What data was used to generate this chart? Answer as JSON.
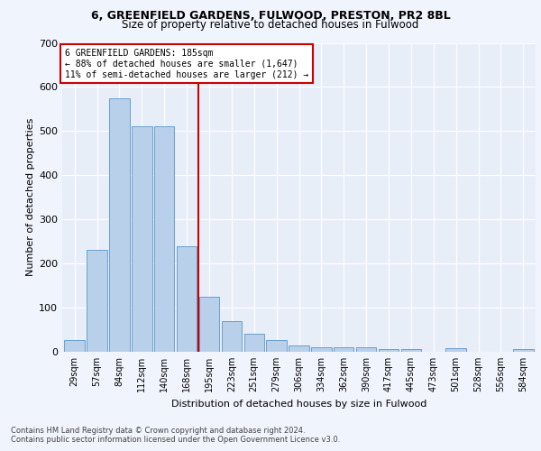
{
  "title1": "6, GREENFIELD GARDENS, FULWOOD, PRESTON, PR2 8BL",
  "title2": "Size of property relative to detached houses in Fulwood",
  "xlabel": "Distribution of detached houses by size in Fulwood",
  "ylabel": "Number of detached properties",
  "categories": [
    "29sqm",
    "57sqm",
    "84sqm",
    "112sqm",
    "140sqm",
    "168sqm",
    "195sqm",
    "223sqm",
    "251sqm",
    "279sqm",
    "306sqm",
    "334sqm",
    "362sqm",
    "390sqm",
    "417sqm",
    "445sqm",
    "473sqm",
    "501sqm",
    "528sqm",
    "556sqm",
    "584sqm"
  ],
  "values": [
    27,
    230,
    575,
    510,
    510,
    240,
    125,
    70,
    40,
    27,
    15,
    10,
    10,
    10,
    6,
    6,
    0,
    8,
    0,
    0,
    6
  ],
  "bar_color": "#b8d0ea",
  "bar_edge_color": "#6aa0cc",
  "vline_index": 6,
  "annotation_line1": "6 GREENFIELD GARDENS: 185sqm",
  "annotation_line2": "← 88% of detached houses are smaller (1,647)",
  "annotation_line3": "11% of semi-detached houses are larger (212) →",
  "annotation_box_color": "#ffffff",
  "annotation_box_edge": "#cc0000",
  "vline_color": "#cc0000",
  "ylim": [
    0,
    700
  ],
  "yticks": [
    0,
    100,
    200,
    300,
    400,
    500,
    600,
    700
  ],
  "footer1": "Contains HM Land Registry data © Crown copyright and database right 2024.",
  "footer2": "Contains public sector information licensed under the Open Government Licence v3.0.",
  "fig_bg_color": "#f0f4fc",
  "plot_bg_color": "#e8eef8"
}
